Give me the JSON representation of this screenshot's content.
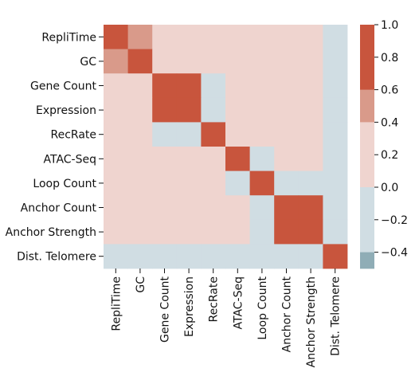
{
  "chart_data": {
    "type": "heatmap",
    "title": "",
    "xlabel": "",
    "ylabel": "",
    "labels": [
      "RepliTime",
      "GC",
      "Gene Count",
      "Expression",
      "RecRate",
      "ATAC-Seq",
      "Loop Count",
      "Anchor Count",
      "Anchor Strength",
      "Dist. Telomere"
    ],
    "matrix": [
      [
        1.0,
        0.5,
        0.2,
        0.2,
        0.2,
        0.2,
        0.2,
        0.2,
        0.2,
        -0.2
      ],
      [
        0.5,
        1.0,
        0.2,
        0.2,
        0.2,
        0.2,
        0.2,
        0.2,
        0.2,
        -0.2
      ],
      [
        0.2,
        0.2,
        1.0,
        1.0,
        -0.2,
        0.2,
        0.2,
        0.2,
        0.2,
        -0.2
      ],
      [
        0.2,
        0.2,
        1.0,
        1.0,
        -0.2,
        0.2,
        0.2,
        0.2,
        0.2,
        -0.2
      ],
      [
        0.2,
        0.2,
        -0.2,
        -0.2,
        1.0,
        0.2,
        0.2,
        0.2,
        0.2,
        -0.2
      ],
      [
        0.2,
        0.2,
        0.2,
        0.2,
        0.2,
        1.0,
        -0.2,
        0.2,
        0.2,
        -0.2
      ],
      [
        0.2,
        0.2,
        0.2,
        0.2,
        0.2,
        -0.2,
        1.0,
        -0.2,
        -0.2,
        -0.2
      ],
      [
        0.2,
        0.2,
        0.2,
        0.2,
        0.2,
        0.2,
        -0.2,
        1.0,
        1.0,
        -0.2
      ],
      [
        0.2,
        0.2,
        0.2,
        0.2,
        0.2,
        0.2,
        -0.2,
        1.0,
        1.0,
        -0.2
      ],
      [
        -0.2,
        -0.2,
        -0.2,
        -0.2,
        -0.2,
        -0.2,
        -0.2,
        -0.2,
        -0.2,
        1.0
      ]
    ],
    "colorbar": {
      "vmin": -0.5,
      "vmax": 1.0,
      "ticks": [
        1.0,
        0.8,
        0.6,
        0.4,
        0.2,
        0.0,
        -0.2,
        -0.4
      ],
      "tick_labels": [
        "1.0",
        "0.8",
        "0.6",
        "0.4",
        "0.2",
        "0.0",
        "−0.2",
        "−0.4"
      ],
      "bins": [
        {
          "min": 0.8,
          "max": 1.0,
          "color": "#c8553d"
        },
        {
          "min": 0.6,
          "max": 0.8,
          "color": "#c8553d"
        },
        {
          "min": 0.4,
          "max": 0.6,
          "color": "#d99a8a"
        },
        {
          "min": 0.0,
          "max": 0.4,
          "color": "#efd4cf"
        },
        {
          "min": -0.4,
          "max": 0.0,
          "color": "#d0dde3"
        },
        {
          "min": -0.5,
          "max": -0.4,
          "color": "#8fadb6"
        }
      ]
    }
  }
}
